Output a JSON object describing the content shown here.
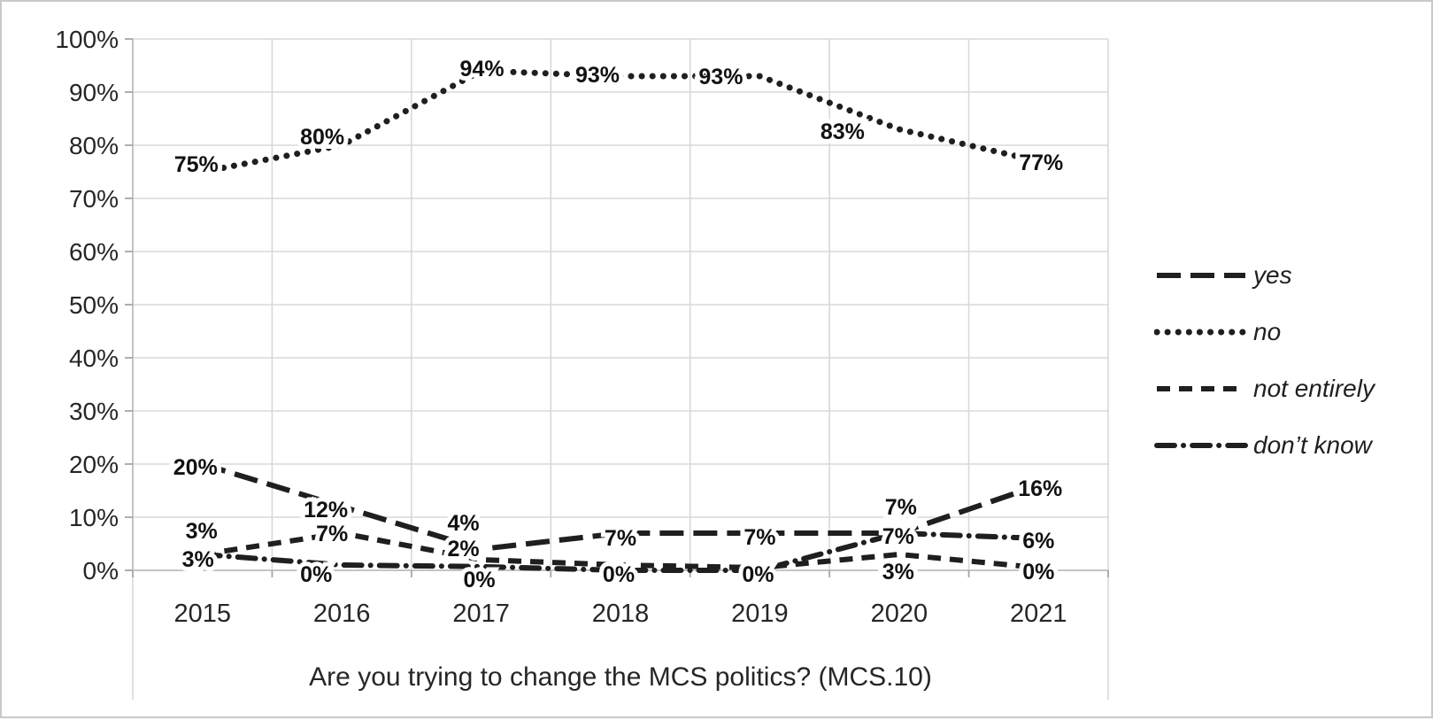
{
  "chart_data": {
    "type": "line",
    "title": "Are you trying to change the MCS politics? (MCS.10)",
    "categories": [
      "2015",
      "2016",
      "2017",
      "2018",
      "2019",
      "2020",
      "2021"
    ],
    "series": [
      {
        "name": "yes",
        "line_style": "long-dash",
        "values": [
          20,
          12,
          4,
          7,
          7,
          7,
          16
        ],
        "labels": [
          "20%",
          "12%",
          "4%",
          "7%",
          "7%",
          "7%",
          "16%"
        ]
      },
      {
        "name": "no",
        "line_style": "dotted",
        "values": [
          75,
          80,
          94,
          93,
          93,
          83,
          77
        ],
        "labels": [
          "75%",
          "80%",
          "94%",
          "93%",
          "93%",
          "83%",
          "77%"
        ]
      },
      {
        "name": "not entirely",
        "line_style": "dashed",
        "values": [
          3,
          7,
          2,
          0,
          0,
          3,
          0
        ],
        "labels": [
          "3%",
          "7%",
          "2%",
          "",
          "",
          "3%",
          "0%"
        ]
      },
      {
        "name": "don’t know",
        "line_style": "dash-dot",
        "values": [
          3,
          0,
          0,
          0,
          0,
          7,
          6
        ],
        "labels": [
          "3%",
          "0%",
          "0%",
          "0%",
          "0%",
          "7%",
          "6%"
        ]
      }
    ],
    "ylim": [
      0,
      100
    ],
    "ytick_labels": [
      "0%",
      "10%",
      "20%",
      "30%",
      "40%",
      "50%",
      "60%",
      "70%",
      "80%",
      "90%",
      "100%"
    ],
    "grid": true,
    "legend_position": "right",
    "colors": {
      "line": "#1f1f1f",
      "gridline": "#d9d9d9",
      "axis": "#bfbfbf",
      "tick": "#a6a6a6",
      "text": "#262626",
      "data_label": "#111111"
    },
    "layout_hints": {
      "plot_values": {
        "2": [
          3,
          7,
          2,
          1,
          0.5,
          3,
          0.5
        ],
        "3": [
          3,
          1,
          0.7,
          0,
          0,
          7,
          6
        ]
      },
      "label_offsets": [
        [
          [
            -8,
            3
          ],
          [
            -18,
            3
          ],
          [
            -20,
            -30
          ],
          [
            0,
            5
          ],
          [
            0,
            4
          ],
          [
            2,
            -30
          ],
          [
            2,
            3
          ]
        ],
        [
          [
            -7,
            -9
          ],
          [
            -22,
            -10
          ],
          [
            1,
            -3
          ],
          [
            -26,
            -2
          ],
          [
            -44,
            0
          ],
          [
            -64,
            2
          ],
          [
            3,
            1
          ]
        ],
        [
          [
            -1,
            -27
          ],
          [
            -11,
            0
          ],
          [
            -20,
            -13
          ],
          [
            0,
            0
          ],
          [
            0,
            0
          ],
          [
            -1,
            19
          ],
          [
            0,
            1
          ]
        ],
        [
          [
            -5,
            5
          ],
          [
            -29,
            4
          ],
          [
            -2,
            10
          ],
          [
            -2,
            4
          ],
          [
            -2,
            4
          ],
          [
            -1,
            3
          ],
          [
            0,
            2
          ]
        ]
      ]
    }
  }
}
